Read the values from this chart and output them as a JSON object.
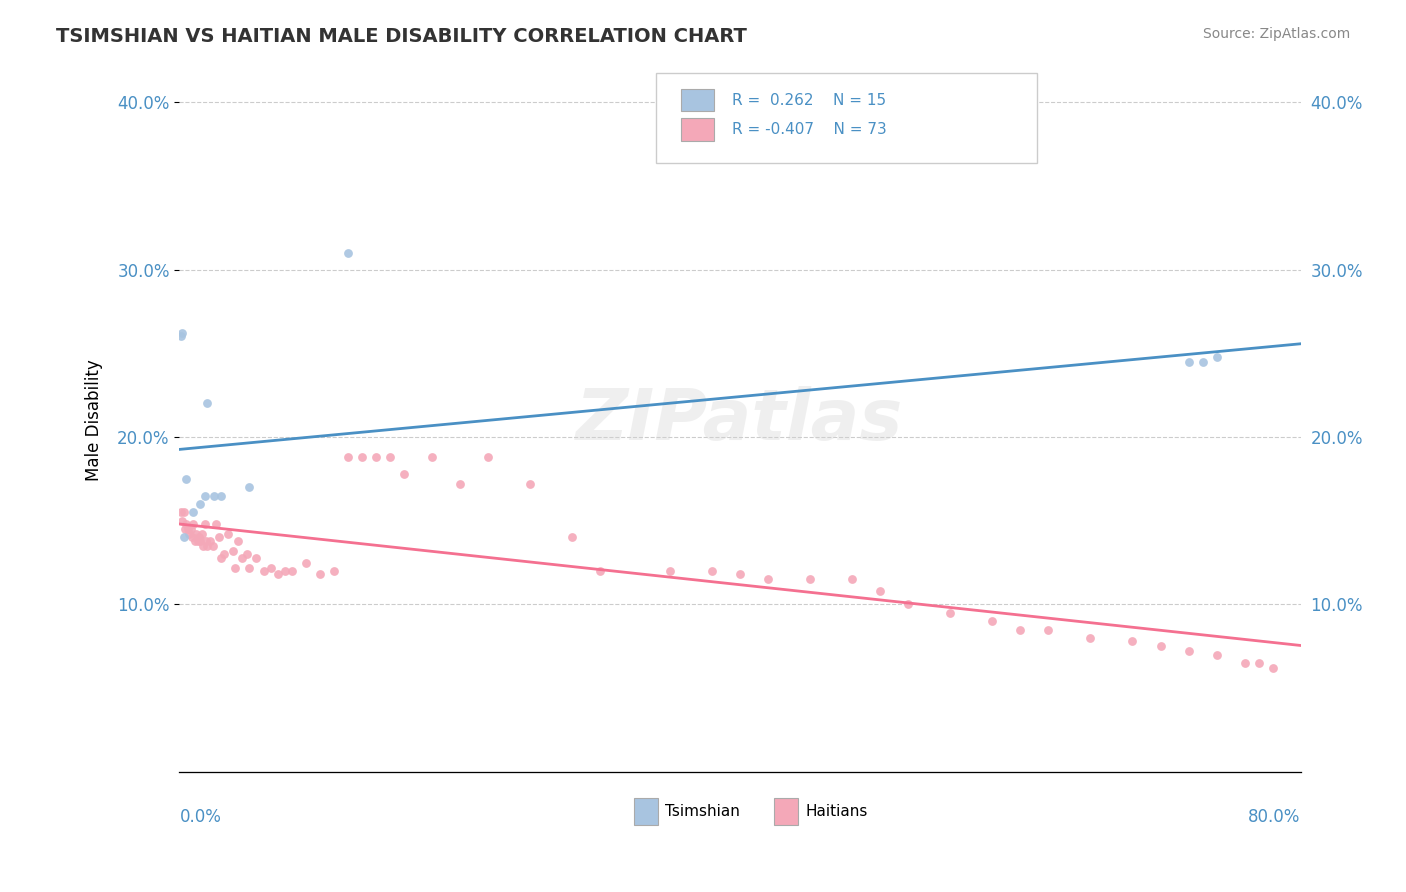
{
  "title": "TSIMSHIAN VS HAITIAN MALE DISABILITY CORRELATION CHART",
  "source": "Source: ZipAtlas.com",
  "ylabel": "Male Disability",
  "x_min": 0.0,
  "x_max": 0.8,
  "y_min": 0.0,
  "y_max": 0.42,
  "y_ticks": [
    0.1,
    0.2,
    0.3,
    0.4
  ],
  "y_tick_labels": [
    "10.0%",
    "20.0%",
    "30.0%",
    "40.0%"
  ],
  "tsimshian_color": "#a8c4e0",
  "haitian_color": "#f4a8b8",
  "tsimshian_line_color": "#4a90c4",
  "haitian_line_color": "#f47090",
  "background_color": "#ffffff",
  "grid_color": "#cccccc",
  "tsimshian_x": [
    0.001,
    0.002,
    0.003,
    0.01,
    0.015,
    0.018,
    0.02,
    0.025,
    0.03,
    0.05,
    0.12,
    0.72,
    0.73,
    0.74,
    0.005
  ],
  "tsimshian_y": [
    0.26,
    0.262,
    0.14,
    0.155,
    0.16,
    0.165,
    0.22,
    0.165,
    0.165,
    0.17,
    0.31,
    0.245,
    0.245,
    0.248,
    0.175
  ],
  "haitian_x": [
    0.001,
    0.002,
    0.003,
    0.004,
    0.005,
    0.006,
    0.007,
    0.008,
    0.009,
    0.01,
    0.011,
    0.012,
    0.013,
    0.014,
    0.015,
    0.016,
    0.017,
    0.018,
    0.019,
    0.02,
    0.022,
    0.024,
    0.026,
    0.028,
    0.03,
    0.032,
    0.035,
    0.038,
    0.04,
    0.042,
    0.045,
    0.048,
    0.05,
    0.055,
    0.06,
    0.065,
    0.07,
    0.075,
    0.08,
    0.09,
    0.1,
    0.11,
    0.12,
    0.13,
    0.14,
    0.15,
    0.16,
    0.18,
    0.2,
    0.22,
    0.25,
    0.28,
    0.3,
    0.35,
    0.38,
    0.4,
    0.42,
    0.45,
    0.48,
    0.5,
    0.52,
    0.55,
    0.58,
    0.6,
    0.62,
    0.65,
    0.68,
    0.7,
    0.72,
    0.74,
    0.76,
    0.77,
    0.78
  ],
  "haitian_y": [
    0.155,
    0.15,
    0.155,
    0.145,
    0.148,
    0.145,
    0.142,
    0.145,
    0.14,
    0.148,
    0.138,
    0.142,
    0.138,
    0.14,
    0.138,
    0.142,
    0.135,
    0.148,
    0.138,
    0.135,
    0.138,
    0.135,
    0.148,
    0.14,
    0.128,
    0.13,
    0.142,
    0.132,
    0.122,
    0.138,
    0.128,
    0.13,
    0.122,
    0.128,
    0.12,
    0.122,
    0.118,
    0.12,
    0.12,
    0.125,
    0.118,
    0.12,
    0.188,
    0.188,
    0.188,
    0.188,
    0.178,
    0.188,
    0.172,
    0.188,
    0.172,
    0.14,
    0.12,
    0.12,
    0.12,
    0.118,
    0.115,
    0.115,
    0.115,
    0.108,
    0.1,
    0.095,
    0.09,
    0.085,
    0.085,
    0.08,
    0.078,
    0.075,
    0.072,
    0.07,
    0.065,
    0.065,
    0.062
  ]
}
